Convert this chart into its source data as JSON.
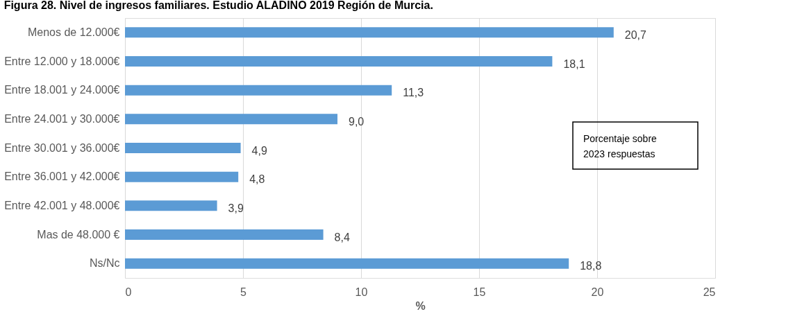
{
  "chart_data": {
    "type": "bar",
    "orientation": "horizontal",
    "title": "Figura 28. Nivel de ingresos familiares. Estudio ALADINO 2019 Región de Murcia.",
    "categories": [
      "Menos de 12.000€",
      "Entre 12.000 y 18.000€",
      "Entre 18.001 y 24.000€",
      "Entre 24.001 y 30.000€",
      "Entre 30.001 y 36.000€",
      "Entre 36.001 y 42.000€",
      "Entre 42.001 y 48.000€",
      "Mas de 48.000 €",
      "Ns/Nc"
    ],
    "values": [
      20.7,
      18.1,
      11.3,
      9.0,
      4.9,
      4.8,
      3.9,
      8.4,
      18.8
    ],
    "value_labels": [
      "20,7",
      "18,1",
      "11,3",
      "9,0",
      "4,9",
      "4,8",
      "3,9",
      "8,4",
      "18,8"
    ],
    "color": "#5b9bd5",
    "xlabel": "%",
    "xlim": [
      0,
      25
    ],
    "xticks": [
      0,
      5,
      10,
      15,
      20,
      25
    ],
    "grid": "x",
    "annotations": [
      "Porcentaje sobre 2023 respuestas"
    ]
  }
}
